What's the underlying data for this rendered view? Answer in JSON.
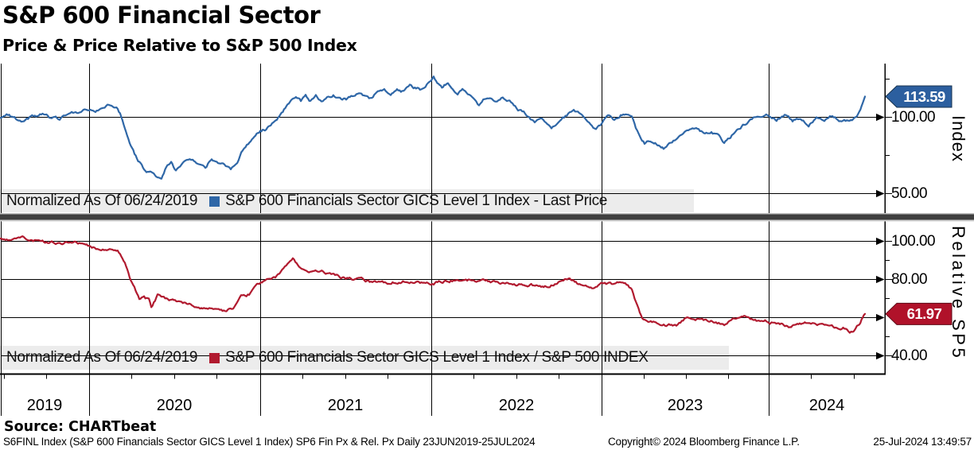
{
  "header": {
    "title": "S&P 600 Financial Sector",
    "subtitle": "Price & Price Relative to S&P 500 Index"
  },
  "source_line": "Source: CHARTbeat",
  "footer": {
    "left": "S6FINL Index (S&P 600 Financials Sector GICS Level 1 Index) SP6 Fin Px & Rel. Px  Daily 23JUN2019-25JUL2024",
    "center": "Copyright© 2024 Bloomberg Finance L.P.",
    "right": "25-Jul-2024 13:49:57"
  },
  "x_axis": {
    "start_label": "23JUN2019",
    "end_label": "25JUL2024",
    "frequency": "Daily",
    "year_labels": [
      "2019",
      "2020",
      "2021",
      "2022",
      "2023",
      "2024"
    ]
  },
  "y_axis": {
    "top": {
      "title": "Index",
      "tick_labels": [
        "100.00",
        "50.00"
      ]
    },
    "bottom": {
      "title": "Relative SP5",
      "tick_labels": [
        "100.00",
        "80.00",
        "40.00"
      ]
    }
  },
  "chart_data": [
    {
      "type": "line",
      "panel": "top",
      "normalized_note": "Normalized As Of 06/24/2019",
      "ylabel": "Index",
      "yticks_major": [
        100,
        50
      ],
      "yticks_minor": [
        125,
        75
      ],
      "ylim": [
        37,
        135
      ],
      "grid": true,
      "series": [
        {
          "name": "S&P 600 Financials Sector GICS Level 1 Index - Last Price",
          "color": "#2f67a7",
          "badge_color": "#2c5f9f",
          "last_price_label": "113.59",
          "last_price": 113.59,
          "points": [
            [
              2019.476,
              100
            ],
            [
              2019.523,
              101.5
            ],
            [
              2019.57,
              99
            ],
            [
              2019.617,
              97.5
            ],
            [
              2019.673,
              100.5
            ],
            [
              2019.734,
              102
            ],
            [
              2019.78,
              99.5
            ],
            [
              2019.827,
              98.5
            ],
            [
              2019.874,
              101.5
            ],
            [
              2019.921,
              103.5
            ],
            [
              2019.967,
              104.5
            ],
            [
              2020.0,
              105.2
            ],
            [
              2020.037,
              103.8
            ],
            [
              2020.075,
              106.5
            ],
            [
              2020.108,
              107.8
            ],
            [
              2020.14,
              106
            ],
            [
              2020.168,
              105.5
            ],
            [
              2020.196,
              99
            ],
            [
              2020.224,
              88
            ],
            [
              2020.252,
              80
            ],
            [
              2020.281,
              73
            ],
            [
              2020.309,
              68.5
            ],
            [
              2020.337,
              64
            ],
            [
              2020.365,
              64.5
            ],
            [
              2020.393,
              61.5
            ],
            [
              2020.425,
              60
            ],
            [
              2020.453,
              68
            ],
            [
              2020.482,
              70
            ],
            [
              2020.51,
              65.5
            ],
            [
              2020.542,
              68
            ],
            [
              2020.575,
              71.5
            ],
            [
              2020.608,
              72.5
            ],
            [
              2020.645,
              68.5
            ],
            [
              2020.683,
              66.5
            ],
            [
              2020.72,
              73.5
            ],
            [
              2020.757,
              70
            ],
            [
              2020.795,
              68.5
            ],
            [
              2020.832,
              65.5
            ],
            [
              2020.87,
              70
            ],
            [
              2020.902,
              78.5
            ],
            [
              2020.935,
              83
            ],
            [
              2020.963,
              87
            ],
            [
              2021.005,
              90.5
            ],
            [
              2021.047,
              93
            ],
            [
              2021.089,
              97
            ],
            [
              2021.131,
              103
            ],
            [
              2021.173,
              108.5
            ],
            [
              2021.215,
              112.5
            ],
            [
              2021.244,
              110
            ],
            [
              2021.272,
              113
            ],
            [
              2021.3,
              110.5
            ],
            [
              2021.332,
              114
            ],
            [
              2021.365,
              110.5
            ],
            [
              2021.398,
              113.5
            ],
            [
              2021.435,
              115
            ],
            [
              2021.473,
              112
            ],
            [
              2021.51,
              111.5
            ],
            [
              2021.547,
              114.5
            ],
            [
              2021.585,
              116.5
            ],
            [
              2021.622,
              113.5
            ],
            [
              2021.66,
              112.5
            ],
            [
              2021.697,
              117
            ],
            [
              2021.734,
              118.5
            ],
            [
              2021.772,
              114.5
            ],
            [
              2021.809,
              119.5
            ],
            [
              2021.847,
              117
            ],
            [
              2021.884,
              120.5
            ],
            [
              2021.921,
              119
            ],
            [
              2021.959,
              118
            ],
            [
              2021.992,
              122
            ],
            [
              2022.024,
              126
            ],
            [
              2022.052,
              121.5
            ],
            [
              2022.08,
              119.5
            ],
            [
              2022.108,
              123
            ],
            [
              2022.136,
              117.5
            ],
            [
              2022.165,
              115
            ],
            [
              2022.193,
              119
            ],
            [
              2022.225,
              114.5
            ],
            [
              2022.258,
              111.5
            ],
            [
              2022.291,
              108
            ],
            [
              2022.323,
              112
            ],
            [
              2022.356,
              113
            ],
            [
              2022.389,
              110
            ],
            [
              2022.422,
              113.5
            ],
            [
              2022.454,
              112
            ],
            [
              2022.487,
              109.5
            ],
            [
              2022.52,
              105
            ],
            [
              2022.553,
              103.5
            ],
            [
              2022.585,
              99.5
            ],
            [
              2022.618,
              96.5
            ],
            [
              2022.651,
              99
            ],
            [
              2022.684,
              97.5
            ],
            [
              2022.716,
              93.5
            ],
            [
              2022.749,
              96
            ],
            [
              2022.782,
              99.5
            ],
            [
              2022.815,
              102
            ],
            [
              2022.847,
              104.5
            ],
            [
              2022.88,
              103
            ],
            [
              2022.913,
              98.5
            ],
            [
              2022.946,
              94.5
            ],
            [
              2022.978,
              92
            ],
            [
              2023.011,
              95.5
            ],
            [
              2023.048,
              100.5
            ],
            [
              2023.086,
              97.5
            ],
            [
              2023.123,
              101.5
            ],
            [
              2023.16,
              102.5
            ],
            [
              2023.189,
              99.5
            ],
            [
              2023.212,
              92
            ],
            [
              2023.235,
              86.5
            ],
            [
              2023.263,
              82.5
            ],
            [
              2023.291,
              85
            ],
            [
              2023.319,
              84.5
            ],
            [
              2023.347,
              81.5
            ],
            [
              2023.375,
              80
            ],
            [
              2023.408,
              83.5
            ],
            [
              2023.441,
              86
            ],
            [
              2023.473,
              88.5
            ],
            [
              2023.506,
              90.5
            ],
            [
              2023.544,
              94
            ],
            [
              2023.581,
              91.5
            ],
            [
              2023.618,
              89.5
            ],
            [
              2023.656,
              90.5
            ],
            [
              2023.693,
              88
            ],
            [
              2023.731,
              84
            ],
            [
              2023.768,
              87.5
            ],
            [
              2023.806,
              92
            ],
            [
              2023.848,
              95.5
            ],
            [
              2023.894,
              99.5
            ],
            [
              2023.941,
              101.5
            ],
            [
              2023.993,
              101
            ],
            [
              2024.039,
              98.5
            ],
            [
              2024.086,
              102
            ],
            [
              2024.133,
              97.5
            ],
            [
              2024.18,
              99.5
            ],
            [
              2024.227,
              95.8
            ],
            [
              2024.273,
              99.5
            ],
            [
              2024.32,
              97.5
            ],
            [
              2024.367,
              101
            ],
            [
              2024.413,
              98.5
            ],
            [
              2024.46,
              97
            ],
            [
              2024.497,
              100
            ],
            [
              2024.525,
              104
            ],
            [
              2024.544,
              109
            ],
            [
              2024.558,
              113.59
            ]
          ]
        }
      ]
    },
    {
      "type": "line",
      "panel": "bottom",
      "normalized_note": "Normalized As Of 06/24/2019",
      "ylabel": "Relative SP5",
      "yticks_major": [
        100,
        80,
        60,
        40
      ],
      "yticks_minor": [
        90,
        70,
        50
      ],
      "ylim": [
        31,
        111
      ],
      "grid": true,
      "series": [
        {
          "name": "S&P 600 Financials Sector GICS Level 1 Index / S&P 500 INDEX",
          "color": "#b11a2f",
          "badge_color": "#b0122a",
          "last_price_label": "61.97",
          "last_price": 61.97,
          "points": [
            [
              2019.476,
              100.8
            ],
            [
              2019.547,
              101.3
            ],
            [
              2019.617,
              101.8
            ],
            [
              2019.687,
              100.3
            ],
            [
              2019.757,
              99.3
            ],
            [
              2019.827,
              99
            ],
            [
              2019.897,
              99.6
            ],
            [
              2019.958,
              99
            ],
            [
              2020.0,
              96.9
            ],
            [
              2020.056,
              95.9
            ],
            [
              2020.112,
              95.3
            ],
            [
              2020.168,
              94.7
            ],
            [
              2020.21,
              88.5
            ],
            [
              2020.238,
              80.5
            ],
            [
              2020.266,
              75.5
            ],
            [
              2020.295,
              70.1
            ],
            [
              2020.323,
              70.6
            ],
            [
              2020.351,
              69.1
            ],
            [
              2020.365,
              65.1
            ],
            [
              2020.402,
              71.6
            ],
            [
              2020.439,
              70.1
            ],
            [
              2020.477,
              69.6
            ],
            [
              2020.519,
              68.1
            ],
            [
              2020.566,
              67.6
            ],
            [
              2020.612,
              66.1
            ],
            [
              2020.659,
              65.1
            ],
            [
              2020.706,
              64.6
            ],
            [
              2020.753,
              63.9
            ],
            [
              2020.799,
              63.6
            ],
            [
              2020.846,
              65.1
            ],
            [
              2020.893,
              70.6
            ],
            [
              2020.94,
              72.1
            ],
            [
              2020.986,
              77.1
            ],
            [
              2021.038,
              80.1
            ],
            [
              2021.094,
              81.1
            ],
            [
              2021.15,
              86.6
            ],
            [
              2021.197,
              90.6
            ],
            [
              2021.234,
              86.1
            ],
            [
              2021.276,
              84.6
            ],
            [
              2021.323,
              84.1
            ],
            [
              2021.374,
              84.1
            ],
            [
              2021.43,
              82.6
            ],
            [
              2021.487,
              81.1
            ],
            [
              2021.552,
              80.1
            ],
            [
              2021.608,
              79.6
            ],
            [
              2021.664,
              78.6
            ],
            [
              2021.73,
              78.1
            ],
            [
              2021.79,
              78.6
            ],
            [
              2021.851,
              79.1
            ],
            [
              2021.912,
              78.6
            ],
            [
              2021.968,
              78.1
            ],
            [
              2022.024,
              78.1
            ],
            [
              2022.085,
              79.1
            ],
            [
              2022.141,
              79.6
            ],
            [
              2022.197,
              80.1
            ],
            [
              2022.253,
              79.6
            ],
            [
              2022.314,
              79.1
            ],
            [
              2022.38,
              78.6
            ],
            [
              2022.445,
              78.1
            ],
            [
              2022.511,
              77.6
            ],
            [
              2022.576,
              77.1
            ],
            [
              2022.641,
              76.6
            ],
            [
              2022.707,
              76.1
            ],
            [
              2022.772,
              80.1
            ],
            [
              2022.838,
              79.8
            ],
            [
              2022.903,
              76.6
            ],
            [
              2022.969,
              75.6
            ],
            [
              2023.03,
              78.1
            ],
            [
              2023.086,
              77.6
            ],
            [
              2023.142,
              78.1
            ],
            [
              2023.189,
              74.6
            ],
            [
              2023.221,
              66.1
            ],
            [
              2023.249,
              59.6
            ],
            [
              2023.277,
              58.6
            ],
            [
              2023.315,
              57.6
            ],
            [
              2023.352,
              56.6
            ],
            [
              2023.399,
              56.1
            ],
            [
              2023.45,
              56.1
            ],
            [
              2023.506,
              59.6
            ],
            [
              2023.562,
              59.1
            ],
            [
              2023.618,
              58.6
            ],
            [
              2023.675,
              58.1
            ],
            [
              2023.731,
              55.9
            ],
            [
              2023.787,
              59.1
            ],
            [
              2023.848,
              60.6
            ],
            [
              2023.913,
              58.6
            ],
            [
              2023.979,
              58.1
            ],
            [
              2024.044,
              57.1
            ],
            [
              2024.11,
              55.6
            ],
            [
              2024.175,
              57.6
            ],
            [
              2024.241,
              56.6
            ],
            [
              2024.306,
              55.6
            ],
            [
              2024.371,
              55.1
            ],
            [
              2024.437,
              54.6
            ],
            [
              2024.469,
              52.1
            ],
            [
              2024.497,
              53.1
            ],
            [
              2024.525,
              56.6
            ],
            [
              2024.544,
              59.6
            ],
            [
              2024.558,
              61.97
            ]
          ]
        }
      ]
    }
  ],
  "colors": {
    "index_line": "#2f67a7",
    "relative_line": "#b11a2f",
    "index_badge": "#2c5f9f",
    "relative_badge": "#b0122a",
    "legend_bg": "#ececec",
    "separator": "#3f3f3f",
    "grid": "#000000"
  }
}
